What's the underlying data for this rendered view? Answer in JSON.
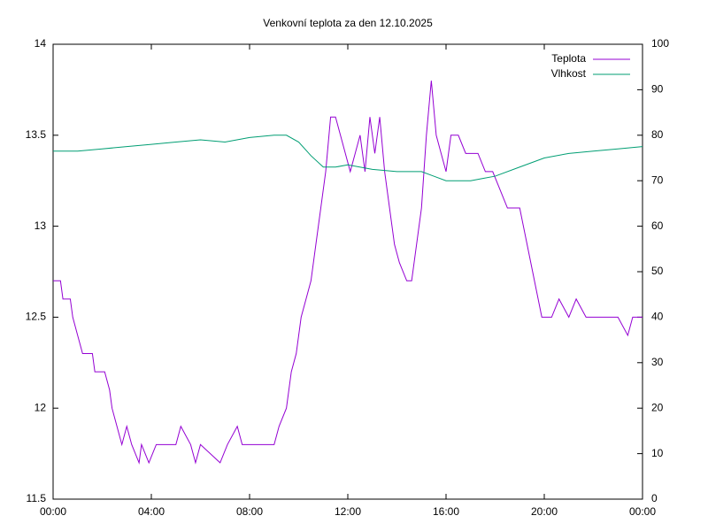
{
  "chart_data": {
    "type": "line",
    "title": "Venkovní teplota za den 12.10.2025",
    "xlim": [
      0,
      24
    ],
    "xticks": [
      {
        "value": 0,
        "label": "00:00"
      },
      {
        "value": 4,
        "label": "04:00"
      },
      {
        "value": 8,
        "label": "08:00"
      },
      {
        "value": 12,
        "label": "12:00"
      },
      {
        "value": 16,
        "label": "16:00"
      },
      {
        "value": 20,
        "label": "20:00"
      },
      {
        "value": 24,
        "label": "00:00"
      }
    ],
    "ylim": [
      11.5,
      14
    ],
    "yticks": [
      11.5,
      12,
      12.5,
      13,
      13.5,
      14
    ],
    "y2lim": [
      0,
      100
    ],
    "y2ticks": [
      0,
      10,
      20,
      30,
      40,
      50,
      60,
      70,
      80,
      90,
      100
    ],
    "legend": "top-right",
    "series": [
      {
        "name": "Teplota",
        "color": "#9400d3",
        "x": [
          0,
          0.3,
          0.4,
          0.7,
          0.8,
          1.0,
          1.2,
          1.6,
          1.7,
          2.1,
          2.3,
          2.4,
          2.6,
          2.8,
          3.0,
          3.2,
          3.5,
          3.6,
          3.9,
          4.2,
          5.0,
          5.2,
          5.6,
          5.8,
          6.0,
          6.8,
          7.1,
          7.5,
          7.7,
          8.5,
          9.0,
          9.2,
          9.5,
          9.7,
          9.9,
          10.1,
          10.3,
          10.5,
          10.7,
          10.9,
          11.1,
          11.3,
          11.5,
          11.7,
          11.9,
          12.1,
          12.3,
          12.5,
          12.7,
          12.9,
          13.1,
          13.3,
          13.5,
          13.7,
          13.9,
          14.1,
          14.4,
          14.6,
          14.8,
          15.0,
          15.2,
          15.4,
          15.6,
          15.8,
          16.0,
          16.2,
          16.5,
          16.8,
          17.0,
          17.3,
          17.6,
          17.9,
          18.2,
          18.5,
          19.0,
          19.3,
          19.6,
          19.9,
          20.3,
          20.6,
          21.0,
          21.3,
          21.7,
          22.0,
          22.5,
          23.0,
          23.4,
          23.6,
          24
        ],
        "values": [
          12.7,
          12.7,
          12.6,
          12.6,
          12.5,
          12.4,
          12.3,
          12.3,
          12.2,
          12.2,
          12.1,
          12.0,
          11.9,
          11.8,
          11.9,
          11.8,
          11.7,
          11.8,
          11.7,
          11.8,
          11.8,
          11.9,
          11.8,
          11.7,
          11.8,
          11.7,
          11.8,
          11.9,
          11.8,
          11.8,
          11.8,
          11.9,
          12.0,
          12.2,
          12.3,
          12.5,
          12.6,
          12.7,
          12.9,
          13.1,
          13.3,
          13.6,
          13.6,
          13.5,
          13.4,
          13.3,
          13.4,
          13.5,
          13.3,
          13.6,
          13.4,
          13.6,
          13.3,
          13.1,
          12.9,
          12.8,
          12.7,
          12.7,
          12.9,
          13.1,
          13.5,
          13.8,
          13.5,
          13.4,
          13.3,
          13.5,
          13.5,
          13.4,
          13.4,
          13.4,
          13.3,
          13.3,
          13.2,
          13.1,
          13.1,
          12.9,
          12.7,
          12.5,
          12.5,
          12.6,
          12.5,
          12.6,
          12.5,
          12.5,
          12.5,
          12.5,
          12.4,
          12.5,
          12.5
        ]
      },
      {
        "name": "Vlhkost",
        "color": "#009e73",
        "axis": "y2",
        "x": [
          0,
          1,
          2,
          3,
          4,
          5,
          6,
          7,
          8,
          9,
          9.5,
          10,
          10.5,
          11,
          11.5,
          12,
          13,
          14,
          15,
          15.5,
          16,
          17,
          17.5,
          18,
          19,
          20,
          21,
          22,
          23,
          24
        ],
        "values": [
          76.5,
          76.5,
          77,
          77.5,
          78,
          78.5,
          79,
          78.5,
          79.5,
          80,
          80,
          78.5,
          75.5,
          73,
          73,
          73.5,
          72.5,
          72,
          72,
          71,
          70,
          70,
          70.5,
          71,
          73,
          75,
          76,
          76.5,
          77,
          77.5
        ]
      }
    ]
  }
}
